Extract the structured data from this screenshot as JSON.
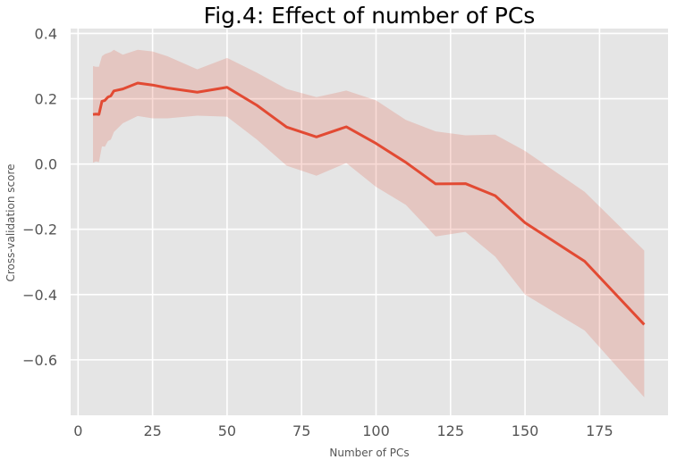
{
  "chart_data": {
    "type": "line",
    "title": "Fig.4: Effect of number of PCs",
    "xlabel": "Number of PCs",
    "ylabel": "Cross-validation score",
    "xlim": [
      -2.5,
      198
    ],
    "ylim": [
      -0.77,
      0.415
    ],
    "x_ticks": [
      0,
      25,
      50,
      75,
      100,
      125,
      150,
      175
    ],
    "y_ticks": [
      -0.6,
      -0.4,
      -0.2,
      0.0,
      0.2,
      0.4
    ],
    "x_tick_labels": [
      "0",
      "25",
      "50",
      "75",
      "100",
      "125",
      "150",
      "175"
    ],
    "y_tick_labels": [
      "−0.6",
      "−0.4",
      "−0.2",
      "0.0",
      "0.2",
      "0.4"
    ],
    "grid": true,
    "series": [
      {
        "color": "#E24A33",
        "x": [
          5,
          6,
          7,
          8,
          9,
          10,
          11,
          12,
          15,
          20,
          25,
          30,
          40,
          50,
          60,
          70,
          80,
          90,
          100,
          110,
          120,
          130,
          140,
          150,
          170,
          190
        ],
        "values": [
          0.152,
          0.153,
          0.152,
          0.192,
          0.195,
          0.205,
          0.209,
          0.224,
          0.23,
          0.248,
          0.242,
          0.233,
          0.22,
          0.235,
          0.18,
          0.113,
          0.083,
          0.114,
          0.063,
          0.005,
          -0.061,
          -0.06,
          -0.097,
          -0.18,
          -0.298,
          -0.492
        ],
        "band_upper": [
          0.3,
          0.298,
          0.298,
          0.33,
          0.337,
          0.34,
          0.343,
          0.35,
          0.335,
          0.35,
          0.345,
          0.33,
          0.29,
          0.325,
          0.28,
          0.23,
          0.205,
          0.225,
          0.195,
          0.135,
          0.1,
          0.088,
          0.09,
          0.04,
          -0.085,
          -0.265
        ],
        "band_lower": [
          0.004,
          0.008,
          0.006,
          0.054,
          0.053,
          0.07,
          0.075,
          0.098,
          0.125,
          0.147,
          0.14,
          0.14,
          0.148,
          0.145,
          0.075,
          -0.005,
          -0.036,
          0.003,
          -0.07,
          -0.125,
          -0.222,
          -0.208,
          -0.284,
          -0.4,
          -0.51,
          -0.715
        ]
      }
    ]
  },
  "colors": {
    "background": "#E5E5E5",
    "grid": "#FFFFFF",
    "line": "#E24A33",
    "band": "#E24A33",
    "tick_text": "#555555"
  }
}
